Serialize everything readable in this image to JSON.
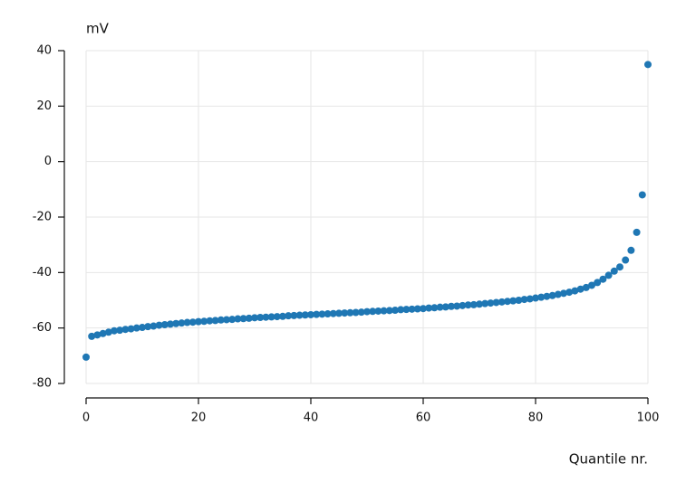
{
  "chart_data": {
    "type": "scatter",
    "ylabel": "mV",
    "xlabel": "Quantile nr.",
    "x": [
      0,
      1,
      2,
      3,
      4,
      5,
      6,
      7,
      8,
      9,
      10,
      11,
      12,
      13,
      14,
      15,
      16,
      17,
      18,
      19,
      20,
      21,
      22,
      23,
      24,
      25,
      26,
      27,
      28,
      29,
      30,
      31,
      32,
      33,
      34,
      35,
      36,
      37,
      38,
      39,
      40,
      41,
      42,
      43,
      44,
      45,
      46,
      47,
      48,
      49,
      50,
      51,
      52,
      53,
      54,
      55,
      56,
      57,
      58,
      59,
      60,
      61,
      62,
      63,
      64,
      65,
      66,
      67,
      68,
      69,
      70,
      71,
      72,
      73,
      74,
      75,
      76,
      77,
      78,
      79,
      80,
      81,
      82,
      83,
      84,
      85,
      86,
      87,
      88,
      89,
      90,
      91,
      92,
      93,
      94,
      95,
      96,
      97,
      98,
      99,
      100
    ],
    "series": [
      {
        "color": "#1f77b4",
        "values": [
          -70.5,
          -63.0,
          -62.5,
          -62.0,
          -61.5,
          -61.0,
          -60.8,
          -60.5,
          -60.3,
          -60.0,
          -59.8,
          -59.5,
          -59.3,
          -59.0,
          -58.8,
          -58.6,
          -58.4,
          -58.2,
          -58.0,
          -57.9,
          -57.7,
          -57.6,
          -57.4,
          -57.3,
          -57.1,
          -57.0,
          -56.9,
          -56.7,
          -56.6,
          -56.5,
          -56.3,
          -56.2,
          -56.1,
          -56.0,
          -55.9,
          -55.8,
          -55.6,
          -55.5,
          -55.4,
          -55.3,
          -55.2,
          -55.1,
          -55.0,
          -54.9,
          -54.8,
          -54.7,
          -54.6,
          -54.5,
          -54.4,
          -54.3,
          -54.1,
          -54.0,
          -53.9,
          -53.8,
          -53.7,
          -53.6,
          -53.4,
          -53.3,
          -53.2,
          -53.1,
          -53.0,
          -52.8,
          -52.7,
          -52.5,
          -52.4,
          -52.2,
          -52.1,
          -51.9,
          -51.7,
          -51.6,
          -51.4,
          -51.2,
          -51.0,
          -50.8,
          -50.6,
          -50.4,
          -50.2,
          -50.0,
          -49.7,
          -49.5,
          -49.2,
          -48.9,
          -48.6,
          -48.3,
          -47.9,
          -47.5,
          -47.1,
          -46.6,
          -46.0,
          -45.4,
          -44.6,
          -43.6,
          -42.4,
          -41.0,
          -39.5,
          -38.0,
          -35.5,
          -32.0,
          -25.5,
          -12.0,
          35.0
        ]
      }
    ],
    "xlim": [
      0,
      100
    ],
    "xticks": [
      0,
      20,
      40,
      60,
      80,
      100
    ],
    "ylim": [
      -80,
      40
    ],
    "yticks": [
      -80,
      -60,
      -40,
      -20,
      0,
      20,
      40
    ],
    "grid": true
  }
}
